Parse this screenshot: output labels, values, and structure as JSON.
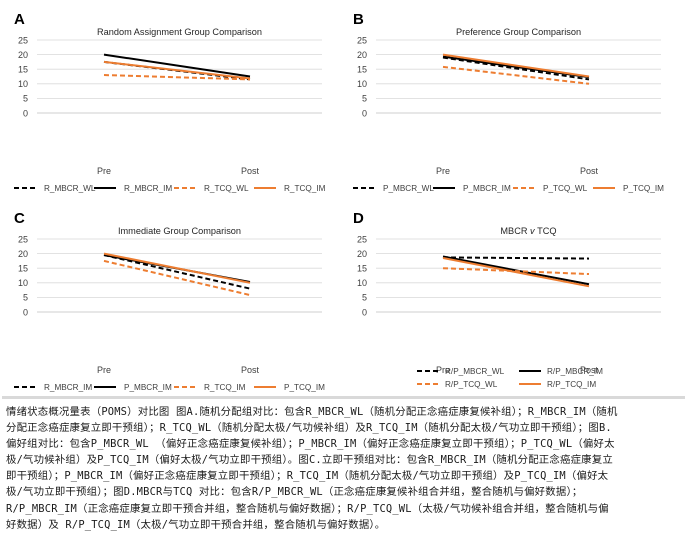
{
  "colors": {
    "black": "#000000",
    "orange": "#ed7d31",
    "grid": "#d9d9d9",
    "axis_text": "#595959"
  },
  "chart_data": [
    {
      "panel": "A",
      "type": "line",
      "title": "Random Assignment Group Comparison",
      "title_italic_word": "",
      "categories": [
        "Pre",
        "Post"
      ],
      "ylim": [
        0,
        25
      ],
      "yticks": [
        0,
        5,
        10,
        15,
        20,
        25
      ],
      "grid": true,
      "legend_position": "bottom",
      "series": [
        {
          "name": "R_MBCR_WL",
          "values": [
            17.5,
            11.5
          ],
          "color": "#000000",
          "dashed": true
        },
        {
          "name": "R_MBCR_IM",
          "values": [
            20.0,
            12.5
          ],
          "color": "#000000",
          "dashed": false
        },
        {
          "name": "R_TCQ_WL",
          "values": [
            13.0,
            11.5
          ],
          "color": "#ed7d31",
          "dashed": true
        },
        {
          "name": "R_TCQ_IM",
          "values": [
            17.5,
            11.8
          ],
          "color": "#ed7d31",
          "dashed": false
        }
      ]
    },
    {
      "panel": "B",
      "type": "line",
      "title": "Preference Group Comparison",
      "title_italic_word": "",
      "categories": [
        "Pre",
        "Post"
      ],
      "ylim": [
        0,
        25
      ],
      "yticks": [
        0,
        5,
        10,
        15,
        20,
        25
      ],
      "grid": true,
      "legend_position": "bottom",
      "series": [
        {
          "name": "P_MBCR_WL",
          "values": [
            19.0,
            11.5
          ],
          "color": "#000000",
          "dashed": true
        },
        {
          "name": "P_MBCR_IM",
          "values": [
            19.3,
            12.3
          ],
          "color": "#000000",
          "dashed": false
        },
        {
          "name": "P_TCQ_WL",
          "values": [
            15.8,
            10.0
          ],
          "color": "#ed7d31",
          "dashed": true
        },
        {
          "name": "P_TCQ_IM",
          "values": [
            20.0,
            12.5
          ],
          "color": "#ed7d31",
          "dashed": false
        }
      ]
    },
    {
      "panel": "C",
      "type": "line",
      "title": "Immediate Group Comparison",
      "title_italic_word": "",
      "categories": [
        "Pre",
        "Post"
      ],
      "ylim": [
        0,
        25
      ],
      "yticks": [
        0,
        5,
        10,
        15,
        20,
        25
      ],
      "grid": true,
      "legend_position": "bottom",
      "series": [
        {
          "name": "R_MBCR_IM",
          "values": [
            19.5,
            8.0
          ],
          "color": "#000000",
          "dashed": true
        },
        {
          "name": "P_MBCR_IM",
          "values": [
            19.5,
            10.3
          ],
          "color": "#000000",
          "dashed": false
        },
        {
          "name": "R_TCQ_IM",
          "values": [
            17.5,
            5.8
          ],
          "color": "#ed7d31",
          "dashed": true
        },
        {
          "name": "P_TCQ_IM",
          "values": [
            20.0,
            10.0
          ],
          "color": "#ed7d31",
          "dashed": false
        }
      ]
    },
    {
      "panel": "D",
      "type": "line",
      "title": "MBCR",
      "title_italic_word": "v",
      "title_suffix": "TCQ",
      "categories": [
        "Pre",
        "Post"
      ],
      "ylim": [
        0,
        25
      ],
      "yticks": [
        0,
        5,
        10,
        15,
        20,
        25
      ],
      "grid": true,
      "legend_position": "bottom",
      "series": [
        {
          "name": "R/P_MBCR_WL",
          "values": [
            18.7,
            18.3
          ],
          "color": "#000000",
          "dashed": true
        },
        {
          "name": "R/P_MBCR_IM",
          "values": [
            19.0,
            9.5
          ],
          "color": "#000000",
          "dashed": false
        },
        {
          "name": "R/P_TCQ_WL",
          "values": [
            15.0,
            13.0
          ],
          "color": "#ed7d31",
          "dashed": true
        },
        {
          "name": "R/P_TCQ_IM",
          "values": [
            18.5,
            8.8
          ],
          "color": "#ed7d31",
          "dashed": false
        }
      ]
    }
  ],
  "caption_lines": [
    "情绪状态概况量表（POMS）对比图 图A.随机分配组对比：包含R_MBCR_WL（随机分配正念癌症康复候补组）；R_MBCR_IM（随机",
    "分配正念癌症康复立即干预组）；R_TCQ_WL（随机分配太极/气功候补组）及R_TCQ_IM（随机分配太极/气功立即干预组）；图B.",
    "偏好组对比：包含P_MBCR_WL （偏好正念癌症康复候补组）；P_MBCR_IM（偏好正念癌症康复立即干预组）；P_TCQ_WL（偏好太",
    "极/气功候补组）及P_TCQ_IM（偏好太极/气功立即干预组）。图C.立即干预组对比：包含R_MBCR_IM（随机分配正念癌症康复立",
    "即干预组）；P_MBCR_IM（偏好正念癌症康复立即干预组）；R_TCQ_IM（随机分配太极/气功立即干预组）及P_TCQ_IM（偏好太",
    "极/气功立即干预组）；图D.MBCR与TCQ 对比：包含R/P_MBCR_WL（正念癌症康复候补组合并组，整合随机与偏好数据）；",
    "R/P_MBCR_IM（正念癌症康复立即干预合并组，整合随机与偏好数据）；R/P_TCQ_WL（太极/气功候补组合并组，整合随机与偏",
    "好数据）及 R/P_TCQ_IM（太极/气功立即干预合并组，整合随机与偏好数据）。"
  ]
}
